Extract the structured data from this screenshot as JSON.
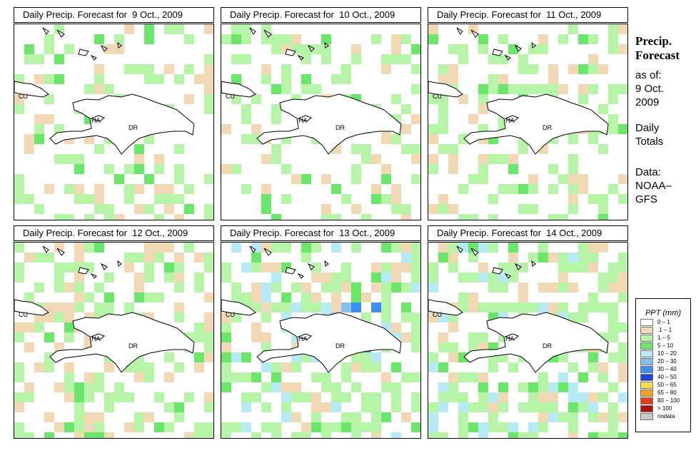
{
  "panels": [
    {
      "title": "Daily Precip. Forecast for  9 Oct., 2009"
    },
    {
      "title": "Daily Precip. Forecast for  10 Oct., 2009"
    },
    {
      "title": "Daily Precip. Forecast for  11 Oct., 2009"
    },
    {
      "title": "Daily Precip. Forecast for  12 Oct., 2009"
    },
    {
      "title": "Daily Precip. Forecast for  13 Oct., 2009"
    },
    {
      "title": "Daily Precip. Forecast for  14 Oct., 2009"
    }
  ],
  "map_labels": {
    "cu": "CU",
    "ha": "HA",
    "dr": "DR"
  },
  "side": {
    "title_line1": "Precip.",
    "title_line2": "Forecast",
    "asof_line1": "as of:",
    "asof_line2": "9 Oct.",
    "asof_line3": "2009",
    "daily_line1": "Daily",
    "daily_line2": "Totals",
    "data_line1": "Data:",
    "data_line2": "NOAA–",
    "data_line3": "GFS"
  },
  "legend": {
    "title": "PPT (mm)",
    "items": [
      {
        "label": "0 – 1",
        "color": "#ffffff"
      },
      {
        "label": ".1 – 1",
        "color": "#f0d9b4"
      },
      {
        "label": "1 – 5",
        "color": "#b6f4a8"
      },
      {
        "label": "5 – 10",
        "color": "#6be66b"
      },
      {
        "label": "10 – 20",
        "color": "#b6eaf4"
      },
      {
        "label": "20 – 30",
        "color": "#86bff0"
      },
      {
        "label": "30 – 40",
        "color": "#3e8ef2"
      },
      {
        "label": "40 – 50",
        "color": "#1846d6"
      },
      {
        "label": "50 – 65",
        "color": "#f7dc50"
      },
      {
        "label": "65 – 80",
        "color": "#f6a21a"
      },
      {
        "label": "80 – 100",
        "color": "#e63c1c"
      },
      {
        "label": "> 100",
        "color": "#b01010"
      },
      {
        "label": "nodata",
        "color": "#c8c8c8"
      }
    ]
  }
}
